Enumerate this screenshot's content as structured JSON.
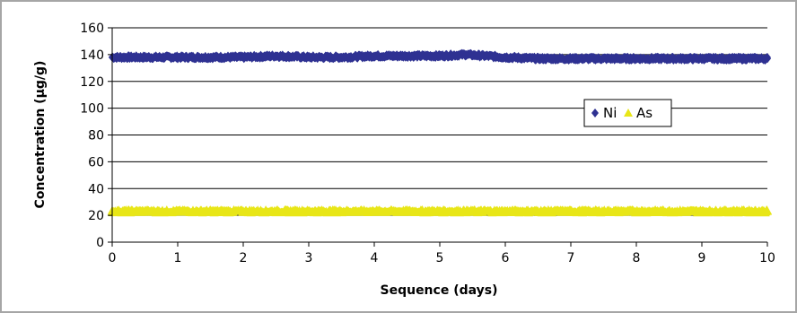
{
  "chart_data": {
    "type": "scatter",
    "title": "",
    "xlabel": "Sequence (days)",
    "ylabel": "Concentration (µg/g)",
    "xlim": [
      0,
      10
    ],
    "ylim": [
      0,
      160
    ],
    "x_ticks": [
      0,
      1,
      2,
      3,
      4,
      5,
      6,
      7,
      8,
      9,
      10
    ],
    "y_ticks": [
      0,
      20,
      40,
      60,
      80,
      100,
      120,
      140,
      160
    ],
    "grid": "horizontal",
    "legend_position": "right",
    "series": [
      {
        "name": "Ni",
        "marker": "diamond",
        "color": "#2e3192",
        "x": [
          0,
          0.5,
          1,
          1.5,
          2,
          2.5,
          3,
          3.5,
          4,
          4.5,
          5,
          5.4,
          5.7,
          6,
          6.5,
          7,
          7.5,
          8,
          8.5,
          9,
          9.5,
          10
        ],
        "y": [
          138,
          138,
          138,
          138,
          138,
          139,
          138,
          138,
          139,
          139,
          139,
          140,
          139,
          138,
          137,
          137,
          137,
          137,
          137,
          137,
          137,
          137
        ]
      },
      {
        "name": "As",
        "marker": "triangle",
        "color": "#e8e617",
        "x": [
          0,
          0.5,
          1,
          1.5,
          2,
          2.5,
          3,
          3.5,
          4,
          4.5,
          5,
          5.5,
          6,
          6.5,
          7,
          7.5,
          8,
          8.5,
          9,
          9.5,
          10
        ],
        "y": [
          23,
          23,
          23,
          23,
          23,
          23,
          23,
          23,
          23,
          23,
          23,
          23,
          23,
          23,
          23,
          23,
          23,
          23,
          23,
          23,
          23
        ]
      }
    ]
  }
}
